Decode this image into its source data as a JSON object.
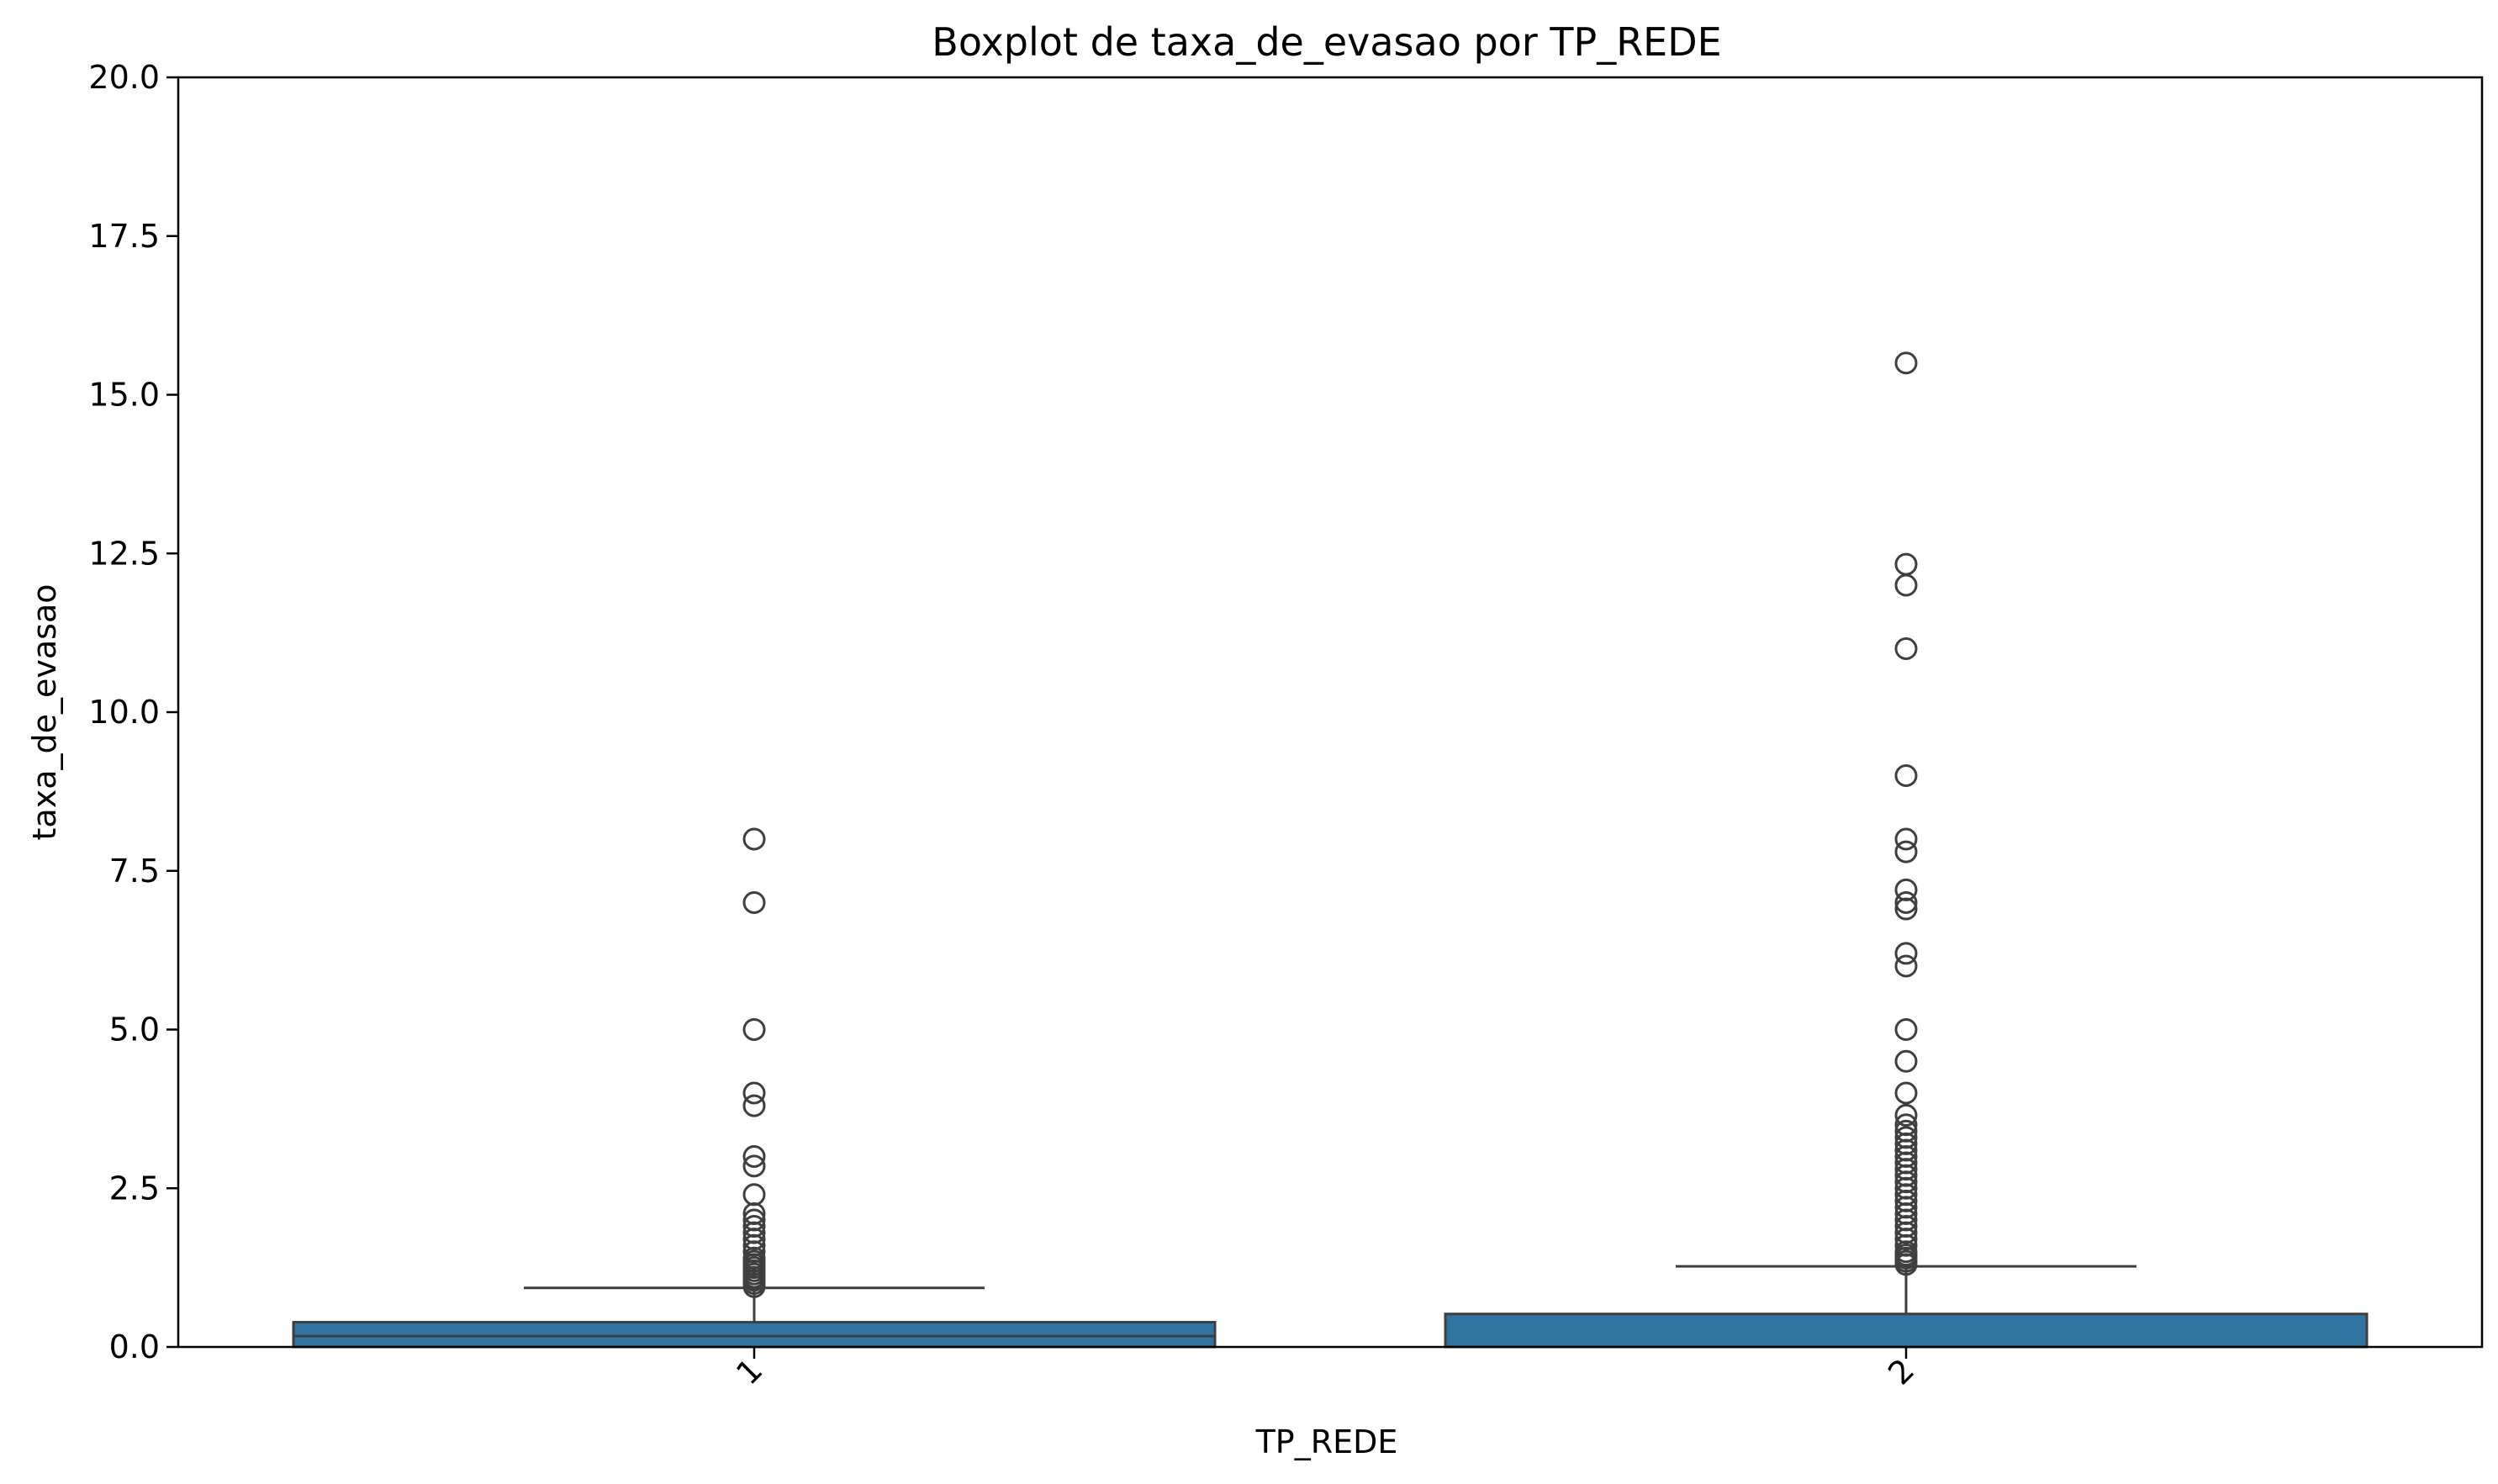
{
  "chart_data": {
    "type": "boxplot",
    "title": "Boxplot de taxa_de_evasao por TP_REDE",
    "xlabel": "TP_REDE",
    "ylabel": "taxa_de_evasao",
    "ylim": [
      0,
      20
    ],
    "yticks": [
      "0.0",
      "2.5",
      "5.0",
      "7.5",
      "10.0",
      "12.5",
      "15.0",
      "17.5",
      "20.0"
    ],
    "categories": [
      "1",
      "2"
    ],
    "xtick_rotation": 45,
    "grid": false,
    "box_color": "#3274a1",
    "line_color": "#3f3f3f",
    "boxes": [
      {
        "category": "1",
        "q1": 0.0,
        "median": 0.17,
        "q3": 0.39,
        "whisker_low": 0.0,
        "whisker_high": 0.93,
        "outliers": [
          0.95,
          1.0,
          1.05,
          1.1,
          1.15,
          1.2,
          1.25,
          1.3,
          1.35,
          1.4,
          1.5,
          1.6,
          1.7,
          1.8,
          1.9,
          2.0,
          2.1,
          2.4,
          2.85,
          3.0,
          3.8,
          4.0,
          5.0,
          7.0,
          8.0
        ]
      },
      {
        "category": "2",
        "q1": 0.0,
        "median": 0.0,
        "q3": 0.52,
        "whisker_low": 0.0,
        "whisker_high": 1.27,
        "outliers": [
          1.3,
          1.35,
          1.4,
          1.45,
          1.5,
          1.6,
          1.7,
          1.8,
          1.9,
          2.0,
          2.1,
          2.2,
          2.3,
          2.4,
          2.5,
          2.6,
          2.7,
          2.8,
          2.9,
          3.0,
          3.1,
          3.2,
          3.3,
          3.4,
          3.5,
          3.65,
          4.0,
          4.5,
          5.0,
          6.0,
          6.2,
          6.9,
          7.0,
          7.2,
          7.8,
          8.0,
          9.0,
          11.0,
          12.0,
          12.33,
          15.5
        ]
      }
    ]
  }
}
